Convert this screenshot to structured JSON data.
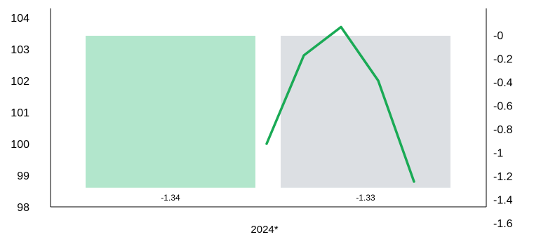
{
  "chart_data": {
    "type": "bar",
    "x_categories": [
      "2024*"
    ],
    "bars": [
      {
        "value": -1.34,
        "label": "-1.34",
        "color": "#b2e6cc"
      },
      {
        "value": -1.33,
        "label": "-1.33",
        "color": "#dcdfe3"
      }
    ],
    "line": {
      "type": "line",
      "axis": "left",
      "color": "#1aaa55",
      "values": [
        100.0,
        102.8,
        103.7,
        102.0,
        98.8
      ]
    },
    "left_axis": {
      "ylim": [
        98,
        104
      ],
      "ticks": [
        "98",
        "99",
        "100",
        "101",
        "102",
        "103",
        "104"
      ]
    },
    "right_axis": {
      "ylim": [
        -1.6,
        0.1
      ],
      "ticks": [
        "-1.6",
        "-1.4",
        "-1.2",
        "-1",
        "-0.8",
        "-0.6",
        "-0.4",
        "-0.2",
        "-0"
      ]
    },
    "bar_base_right_axis": -1.3
  }
}
